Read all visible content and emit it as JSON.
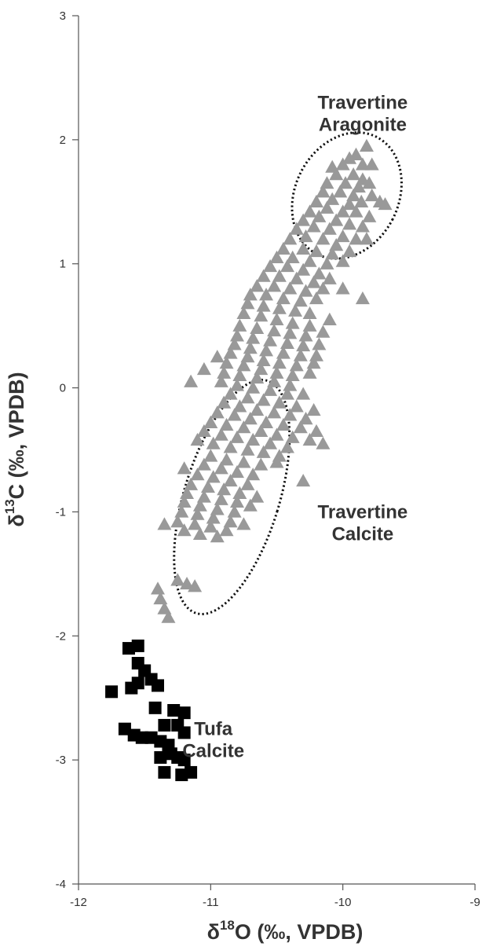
{
  "chart_data": {
    "type": "scatter",
    "title": "",
    "xlabel_parts": {
      "delta": "δ",
      "sup": "18",
      "rest": "O (‰, VPDB)"
    },
    "ylabel_parts": {
      "delta": "δ",
      "sup": "13",
      "rest": "C (‰, VPDB)"
    },
    "xlim": [
      -12,
      -9
    ],
    "ylim": [
      -4,
      3
    ],
    "x_ticks": [
      {
        "value": -12,
        "label": "-12"
      },
      {
        "value": -11,
        "label": "-11"
      },
      {
        "value": -10,
        "label": "-10"
      },
      {
        "value": -9,
        "label": "-9"
      }
    ],
    "y_ticks": [
      {
        "value": -4,
        "label": "-4"
      },
      {
        "value": -3,
        "label": "-3"
      },
      {
        "value": -2,
        "label": "-2"
      },
      {
        "value": -1,
        "label": "-1"
      },
      {
        "value": 0,
        "label": "0"
      },
      {
        "value": 1,
        "label": "1"
      },
      {
        "value": 2,
        "label": "2"
      },
      {
        "value": 3,
        "label": "3"
      }
    ],
    "grid": false,
    "annotations": [
      {
        "lines": [
          "Travertine",
          "Aragonite"
        ],
        "x": -9.85,
        "y": 2.25
      },
      {
        "lines": [
          "Travertine",
          "Calcite"
        ],
        "x": -9.85,
        "y": -1.05
      },
      {
        "lines": [
          "Tufa",
          "Calcite"
        ],
        "x": -10.98,
        "y": -2.8
      }
    ],
    "ellipses": [
      {
        "cx": -9.97,
        "cy": 1.55,
        "rx": 0.39,
        "ry": 0.53,
        "rotate_deg": 27
      },
      {
        "cx": -10.84,
        "cy": -0.88,
        "rx": 0.36,
        "ry": 0.98,
        "rotate_deg": 17
      }
    ],
    "series": [
      {
        "marker": "triangle",
        "color": "#999999",
        "points": [
          [
            -9.82,
            1.95
          ],
          [
            -9.9,
            1.88
          ],
          [
            -9.95,
            1.85
          ],
          [
            -10.0,
            1.8
          ],
          [
            -9.85,
            1.8
          ],
          [
            -9.78,
            1.8
          ],
          [
            -10.08,
            1.78
          ],
          [
            -10.05,
            1.72
          ],
          [
            -9.92,
            1.72
          ],
          [
            -9.85,
            1.68
          ],
          [
            -10.12,
            1.65
          ],
          [
            -9.98,
            1.65
          ],
          [
            -9.88,
            1.62
          ],
          [
            -9.8,
            1.65
          ],
          [
            -10.15,
            1.58
          ],
          [
            -10.02,
            1.58
          ],
          [
            -9.92,
            1.55
          ],
          [
            -9.78,
            1.55
          ],
          [
            -10.2,
            1.5
          ],
          [
            -10.08,
            1.52
          ],
          [
            -9.95,
            1.48
          ],
          [
            -9.86,
            1.5
          ],
          [
            -9.72,
            1.5
          ],
          [
            -9.68,
            1.48
          ],
          [
            -10.25,
            1.42
          ],
          [
            -10.12,
            1.45
          ],
          [
            -10.0,
            1.42
          ],
          [
            -9.9,
            1.42
          ],
          [
            -9.8,
            1.38
          ],
          [
            -10.3,
            1.35
          ],
          [
            -10.18,
            1.38
          ],
          [
            -10.05,
            1.35
          ],
          [
            -9.95,
            1.32
          ],
          [
            -9.85,
            1.3
          ],
          [
            -10.35,
            1.28
          ],
          [
            -10.22,
            1.3
          ],
          [
            -10.1,
            1.28
          ],
          [
            -10.0,
            1.22
          ],
          [
            -9.9,
            1.2
          ],
          [
            -10.4,
            1.2
          ],
          [
            -10.28,
            1.22
          ],
          [
            -10.15,
            1.2
          ],
          [
            -10.05,
            1.15
          ],
          [
            -9.82,
            1.2
          ],
          [
            -10.45,
            1.12
          ],
          [
            -10.3,
            1.12
          ],
          [
            -10.2,
            1.1
          ],
          [
            -10.08,
            1.08
          ],
          [
            -9.95,
            1.1
          ],
          [
            -10.5,
            1.05
          ],
          [
            -10.38,
            1.05
          ],
          [
            -10.25,
            1.02
          ],
          [
            -10.12,
            1.0
          ],
          [
            -10.0,
            1.02
          ],
          [
            -10.55,
            0.98
          ],
          [
            -10.42,
            0.98
          ],
          [
            -10.3,
            0.95
          ],
          [
            -10.18,
            0.92
          ],
          [
            -10.6,
            0.9
          ],
          [
            -10.48,
            0.9
          ],
          [
            -10.35,
            0.88
          ],
          [
            -10.22,
            0.85
          ],
          [
            -10.1,
            0.88
          ],
          [
            -10.65,
            0.82
          ],
          [
            -10.52,
            0.82
          ],
          [
            -10.4,
            0.8
          ],
          [
            -10.28,
            0.78
          ],
          [
            -10.15,
            0.8
          ],
          [
            -10.7,
            0.75
          ],
          [
            -10.58,
            0.75
          ],
          [
            -10.45,
            0.72
          ],
          [
            -10.32,
            0.7
          ],
          [
            -10.2,
            0.72
          ],
          [
            -10.0,
            0.8
          ],
          [
            -9.85,
            0.72
          ],
          [
            -10.72,
            0.68
          ],
          [
            -10.6,
            0.66
          ],
          [
            -10.48,
            0.64
          ],
          [
            -10.36,
            0.62
          ],
          [
            -10.25,
            0.6
          ],
          [
            -10.75,
            0.6
          ],
          [
            -10.62,
            0.58
          ],
          [
            -10.5,
            0.55
          ],
          [
            -10.38,
            0.52
          ],
          [
            -10.25,
            0.5
          ],
          [
            -10.1,
            0.55
          ],
          [
            -10.78,
            0.5
          ],
          [
            -10.65,
            0.48
          ],
          [
            -10.52,
            0.46
          ],
          [
            -10.4,
            0.44
          ],
          [
            -10.28,
            0.42
          ],
          [
            -10.15,
            0.45
          ],
          [
            -10.8,
            0.42
          ],
          [
            -10.68,
            0.4
          ],
          [
            -10.55,
            0.38
          ],
          [
            -10.42,
            0.36
          ],
          [
            -10.3,
            0.34
          ],
          [
            -10.18,
            0.35
          ],
          [
            -10.82,
            0.35
          ],
          [
            -10.7,
            0.32
          ],
          [
            -10.58,
            0.3
          ],
          [
            -10.45,
            0.28
          ],
          [
            -10.32,
            0.26
          ],
          [
            -10.2,
            0.26
          ],
          [
            -10.85,
            0.28
          ],
          [
            -10.72,
            0.25
          ],
          [
            -10.6,
            0.22
          ],
          [
            -10.48,
            0.2
          ],
          [
            -10.35,
            0.18
          ],
          [
            -10.22,
            0.2
          ],
          [
            -10.88,
            0.2
          ],
          [
            -10.75,
            0.18
          ],
          [
            -10.62,
            0.15
          ],
          [
            -10.5,
            0.12
          ],
          [
            -10.38,
            0.1
          ],
          [
            -10.25,
            0.12
          ],
          [
            -10.9,
            0.12
          ],
          [
            -10.78,
            0.1
          ],
          [
            -10.65,
            0.08
          ],
          [
            -10.52,
            0.05
          ],
          [
            -10.4,
            0.02
          ],
          [
            -10.92,
            0.05
          ],
          [
            -10.8,
            0.02
          ],
          [
            -10.68,
            0.0
          ],
          [
            -10.55,
            -0.02
          ],
          [
            -10.42,
            -0.05
          ],
          [
            -10.3,
            -0.05
          ],
          [
            -11.15,
            0.05
          ],
          [
            -11.05,
            0.15
          ],
          [
            -10.95,
            0.25
          ],
          [
            -10.85,
            -0.05
          ],
          [
            -10.72,
            -0.08
          ],
          [
            -10.6,
            -0.1
          ],
          [
            -10.48,
            -0.12
          ],
          [
            -10.35,
            -0.15
          ],
          [
            -10.22,
            -0.18
          ],
          [
            -10.9,
            -0.12
          ],
          [
            -10.78,
            -0.15
          ],
          [
            -10.65,
            -0.18
          ],
          [
            -10.52,
            -0.2
          ],
          [
            -10.4,
            -0.22
          ],
          [
            -10.28,
            -0.25
          ],
          [
            -10.95,
            -0.2
          ],
          [
            -10.82,
            -0.22
          ],
          [
            -10.7,
            -0.25
          ],
          [
            -10.58,
            -0.28
          ],
          [
            -10.45,
            -0.3
          ],
          [
            -10.32,
            -0.32
          ],
          [
            -10.2,
            -0.35
          ],
          [
            -11.0,
            -0.28
          ],
          [
            -10.88,
            -0.3
          ],
          [
            -10.75,
            -0.32
          ],
          [
            -10.62,
            -0.35
          ],
          [
            -10.5,
            -0.38
          ],
          [
            -10.38,
            -0.4
          ],
          [
            -10.25,
            -0.42
          ],
          [
            -10.15,
            -0.45
          ],
          [
            -11.05,
            -0.35
          ],
          [
            -10.92,
            -0.38
          ],
          [
            -10.8,
            -0.4
          ],
          [
            -10.68,
            -0.42
          ],
          [
            -10.55,
            -0.45
          ],
          [
            -10.42,
            -0.48
          ],
          [
            -11.1,
            -0.42
          ],
          [
            -10.98,
            -0.45
          ],
          [
            -10.85,
            -0.48
          ],
          [
            -10.72,
            -0.5
          ],
          [
            -10.6,
            -0.52
          ],
          [
            -10.48,
            -0.55
          ],
          [
            -11.0,
            -0.55
          ],
          [
            -10.88,
            -0.58
          ],
          [
            -10.75,
            -0.6
          ],
          [
            -10.62,
            -0.62
          ],
          [
            -10.5,
            -0.6
          ],
          [
            -11.05,
            -0.62
          ],
          [
            -10.92,
            -0.65
          ],
          [
            -10.8,
            -0.68
          ],
          [
            -10.68,
            -0.7
          ],
          [
            -11.2,
            -0.65
          ],
          [
            -11.1,
            -0.7
          ],
          [
            -10.98,
            -0.72
          ],
          [
            -10.85,
            -0.75
          ],
          [
            -10.72,
            -0.78
          ],
          [
            -10.3,
            -0.75
          ],
          [
            -11.15,
            -0.78
          ],
          [
            -11.02,
            -0.8
          ],
          [
            -10.9,
            -0.82
          ],
          [
            -10.78,
            -0.85
          ],
          [
            -10.65,
            -0.88
          ],
          [
            -11.18,
            -0.85
          ],
          [
            -11.05,
            -0.88
          ],
          [
            -10.92,
            -0.9
          ],
          [
            -10.8,
            -0.92
          ],
          [
            -10.7,
            -0.95
          ],
          [
            -11.2,
            -0.92
          ],
          [
            -11.08,
            -0.95
          ],
          [
            -10.95,
            -0.98
          ],
          [
            -10.82,
            -1.0
          ],
          [
            -11.22,
            -1.0
          ],
          [
            -11.1,
            -1.02
          ],
          [
            -10.98,
            -1.05
          ],
          [
            -10.85,
            -1.08
          ],
          [
            -10.75,
            -1.1
          ],
          [
            -11.25,
            -1.08
          ],
          [
            -11.12,
            -1.1
          ],
          [
            -11.0,
            -1.12
          ],
          [
            -10.88,
            -1.15
          ],
          [
            -11.2,
            -1.15
          ],
          [
            -11.08,
            -1.18
          ],
          [
            -10.95,
            -1.2
          ],
          [
            -11.35,
            -1.1
          ],
          [
            -11.25,
            -1.55
          ],
          [
            -11.18,
            -1.58
          ],
          [
            -11.12,
            -1.6
          ],
          [
            -11.4,
            -1.62
          ],
          [
            -11.38,
            -1.7
          ],
          [
            -11.35,
            -1.78
          ],
          [
            -11.32,
            -1.85
          ]
        ]
      },
      {
        "marker": "square",
        "color": "#000000",
        "points": [
          [
            -11.62,
            -2.1
          ],
          [
            -11.55,
            -2.08
          ],
          [
            -11.55,
            -2.22
          ],
          [
            -11.5,
            -2.28
          ],
          [
            -11.45,
            -2.35
          ],
          [
            -11.4,
            -2.4
          ],
          [
            -11.55,
            -2.38
          ],
          [
            -11.75,
            -2.45
          ],
          [
            -11.6,
            -2.42
          ],
          [
            -11.42,
            -2.58
          ],
          [
            -11.28,
            -2.6
          ],
          [
            -11.2,
            -2.62
          ],
          [
            -11.65,
            -2.75
          ],
          [
            -11.58,
            -2.8
          ],
          [
            -11.52,
            -2.82
          ],
          [
            -11.45,
            -2.82
          ],
          [
            -11.38,
            -2.85
          ],
          [
            -11.32,
            -2.88
          ],
          [
            -11.25,
            -2.72
          ],
          [
            -11.2,
            -2.78
          ],
          [
            -11.35,
            -2.72
          ],
          [
            -11.3,
            -2.95
          ],
          [
            -11.25,
            -2.98
          ],
          [
            -11.38,
            -2.98
          ],
          [
            -11.2,
            -3.0
          ],
          [
            -11.35,
            -3.1
          ],
          [
            -11.22,
            -3.12
          ],
          [
            -11.15,
            -3.1
          ]
        ]
      }
    ]
  }
}
